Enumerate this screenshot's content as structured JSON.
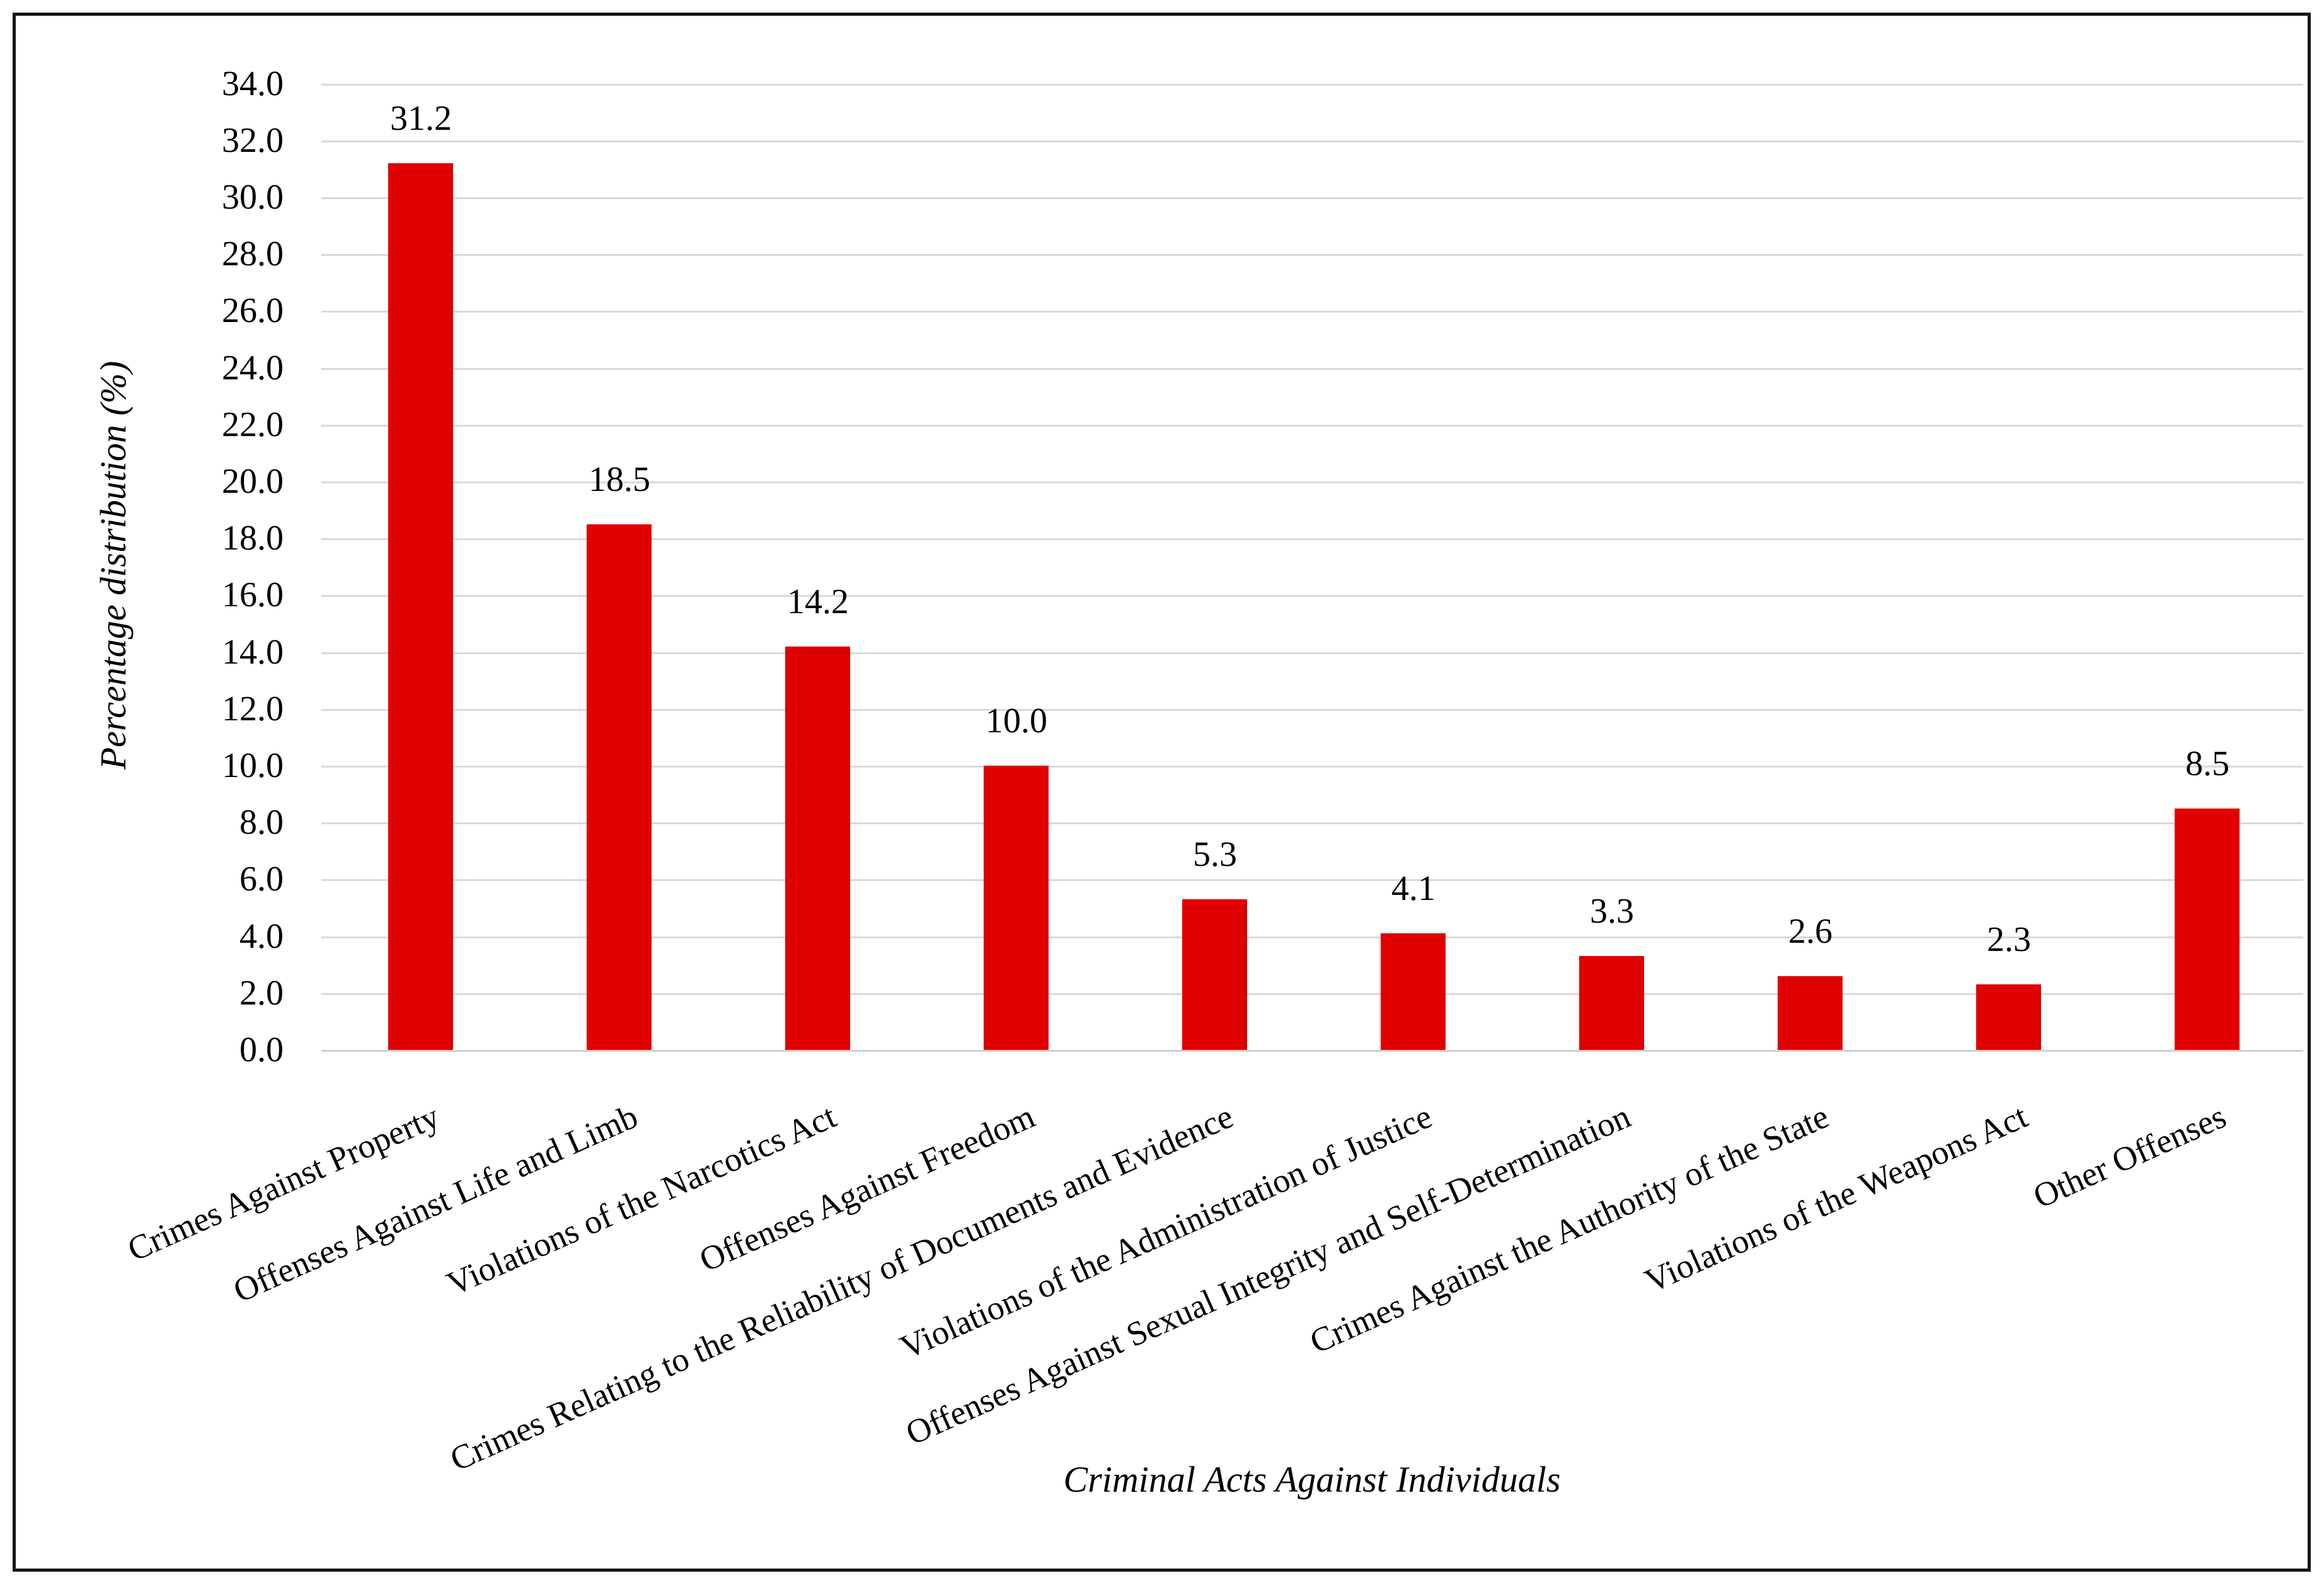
{
  "chart_data": {
    "type": "bar",
    "title": "",
    "categories": [
      "Crimes Against Property",
      "Offenses Against Life and Limb",
      "Violations of the Narcotics Act",
      "Offenses Against Freedom",
      "Crimes Relating to the Reliability of Documents and Evidence",
      "Violations of the Administration of Justice",
      "Offenses Against Sexual Integrity and Self-Determination",
      "Crimes Against the Authority of the State",
      "Violations of the Weapons Act",
      "Other Offenses"
    ],
    "values": [
      31.2,
      18.5,
      14.2,
      10.0,
      5.3,
      4.1,
      3.3,
      2.6,
      2.3,
      8.5
    ],
    "value_labels": [
      "31.2",
      "18.5",
      "14.2",
      "10.0",
      "5.3",
      "4.1",
      "3.3",
      "2.6",
      "2.3",
      "8.5"
    ],
    "xlabel": "Criminal Acts Against Individuals",
    "ylabel": "Percentage distribution (%)",
    "ylim": [
      0,
      34
    ],
    "ytick_step": 2,
    "ytick_labels": [
      "0.0",
      "2.0",
      "4.0",
      "6.0",
      "8.0",
      "10.0",
      "12.0",
      "14.0",
      "16.0",
      "18.0",
      "20.0",
      "22.0",
      "24.0",
      "26.0",
      "28.0",
      "30.0",
      "32.0",
      "34.0"
    ],
    "grid": "horizontal",
    "legend": "none",
    "bar_color": "#e00000",
    "gridline_color": "#d9d9d9",
    "frame_color": "#161616",
    "text_color": "#000000"
  }
}
